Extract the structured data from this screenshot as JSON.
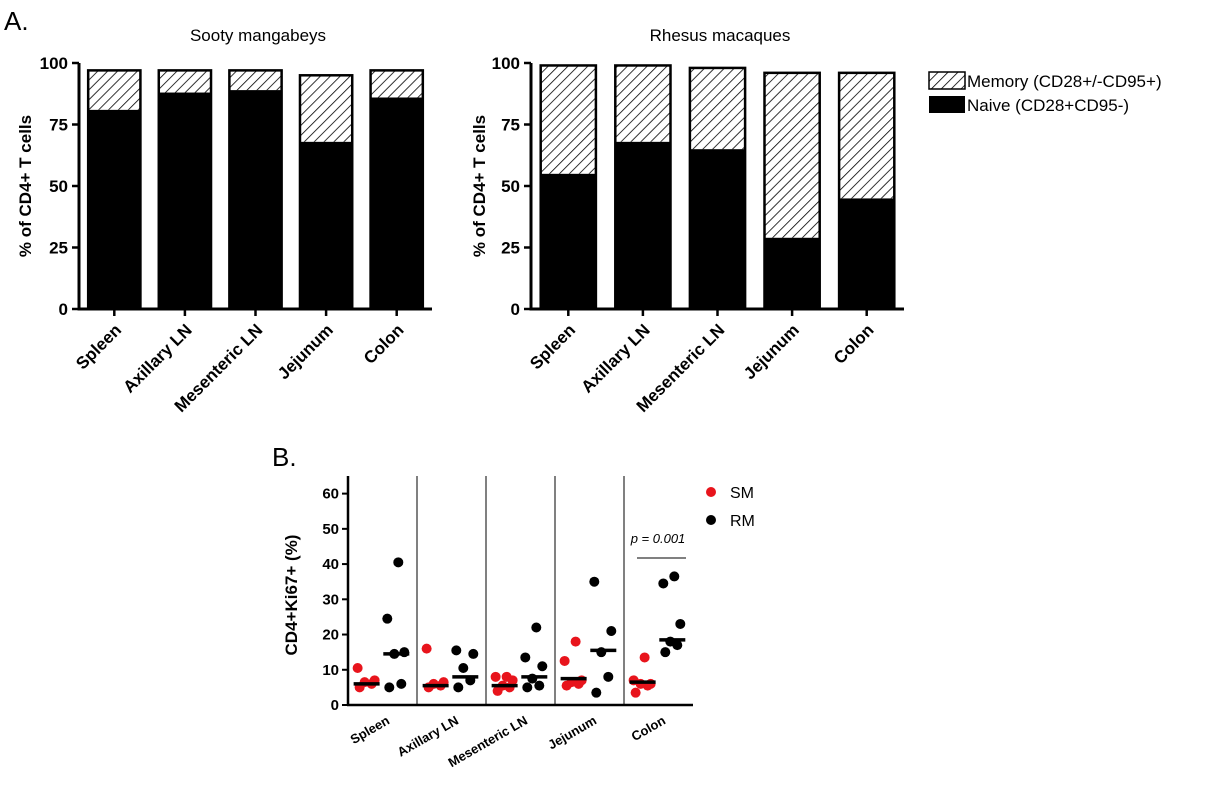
{
  "panel_labels": {
    "a": "A.",
    "b": "B."
  },
  "legend_a": {
    "memory": "Memory (CD28+/-CD95+)",
    "naive": "Naive (CD28+CD95-)"
  },
  "legend_b": {
    "sm": "SM",
    "rm": "RM"
  },
  "colors": {
    "sm": "#e8141c",
    "rm": "#000000",
    "naive": "#000000",
    "memory_hatch": "#000000"
  },
  "annotation": "p = 0.001",
  "chart_data": [
    {
      "type": "bar",
      "stacked": true,
      "title": "Sooty mangabeys",
      "ylabel": "% of  CD4+  T cells",
      "xlabel": "",
      "ylim": [
        0,
        100
      ],
      "yticks": [
        "0",
        "25",
        "50",
        "75",
        "100"
      ],
      "categories": [
        "Spleen",
        "Axillary LN",
        "Mesenteric LN",
        "Jejunum",
        "Colon"
      ],
      "series": [
        {
          "name": "Naive (CD28+CD95-)",
          "values": [
            81,
            88,
            89,
            68,
            86
          ]
        },
        {
          "name": "Memory (CD28+/-CD95+)",
          "values": [
            16,
            9,
            8,
            27,
            11
          ]
        }
      ]
    },
    {
      "type": "bar",
      "stacked": true,
      "title": "Rhesus macaques",
      "ylabel": "% of  CD4+  T cells",
      "xlabel": "",
      "ylim": [
        0,
        100
      ],
      "yticks": [
        "0",
        "25",
        "50",
        "75",
        "100"
      ],
      "categories": [
        "Spleen",
        "Axillary LN",
        "Mesenteric LN",
        "Jejunum",
        "Colon"
      ],
      "series": [
        {
          "name": "Naive (CD28+CD95-)",
          "values": [
            55,
            68,
            65,
            29,
            45
          ]
        },
        {
          "name": "Memory (CD28+/-CD95+)",
          "values": [
            44,
            31,
            33,
            67,
            51
          ]
        }
      ]
    },
    {
      "type": "scatter",
      "title": "",
      "ylabel": "CD4+Ki67+ (%)",
      "xlabel": "",
      "ylim": [
        0,
        65
      ],
      "yticks": [
        "0",
        "10",
        "20",
        "30",
        "40",
        "50",
        "60"
      ],
      "categories": [
        "Spleen",
        "Axillary LN",
        "Mesenteric LN",
        "Jejunum",
        "Colon"
      ],
      "series": [
        {
          "name": "SM",
          "points": [
            [
              5,
              6,
              6.5,
              7,
              10.5
            ],
            [
              5,
              5.5,
              6,
              6.5,
              16
            ],
            [
              4,
              5,
              5.5,
              7,
              8,
              8
            ],
            [
              5.5,
              6,
              6.5,
              7,
              12.5,
              18
            ],
            [
              3.5,
              5.5,
              6,
              6,
              7,
              13.5
            ]
          ],
          "medians": [
            6,
            5.5,
            5.5,
            7.5,
            6.5
          ]
        },
        {
          "name": "RM",
          "points": [
            [
              5,
              6,
              14.5,
              15,
              24.5,
              40.5
            ],
            [
              5,
              7,
              10.5,
              14.5,
              15.5
            ],
            [
              5,
              5.5,
              7.5,
              11,
              13.5,
              22
            ],
            [
              3.5,
              8,
              15,
              21,
              35
            ],
            [
              15,
              17,
              18,
              23,
              34.5,
              36.5
            ]
          ],
          "medians": [
            14.5,
            8,
            8,
            15.5,
            18.5
          ]
        }
      ]
    }
  ]
}
